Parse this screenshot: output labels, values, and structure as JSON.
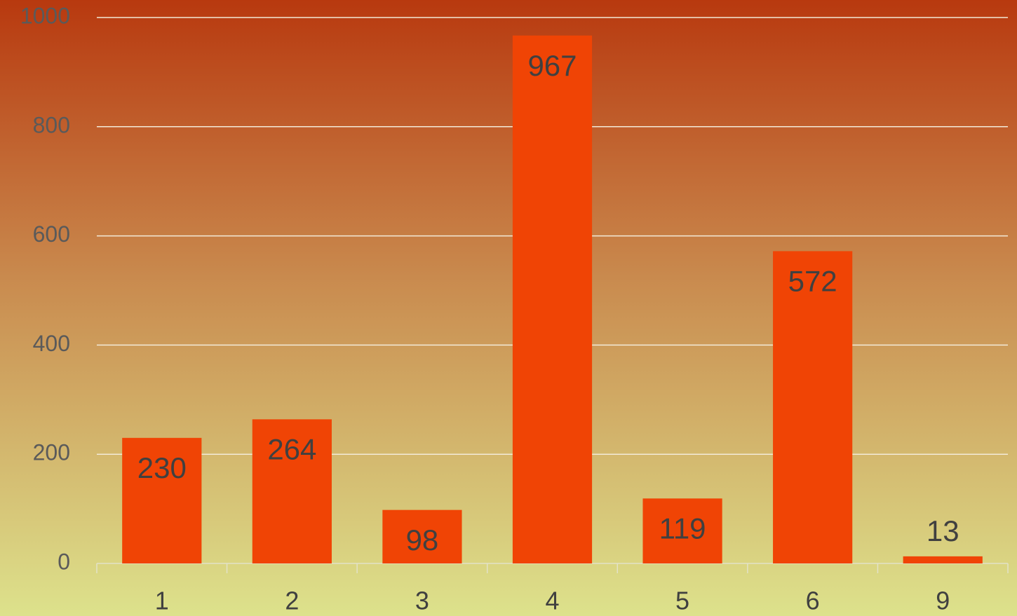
{
  "chart_data": {
    "type": "bar",
    "categories": [
      "1",
      "2",
      "3",
      "4",
      "5",
      "6",
      "9"
    ],
    "values": [
      230,
      264,
      98,
      967,
      119,
      572,
      13
    ],
    "color": "#f04405",
    "ylim": [
      0,
      1000
    ],
    "yticks": [
      0,
      200,
      400,
      600,
      800,
      1000
    ],
    "grid": true
  }
}
